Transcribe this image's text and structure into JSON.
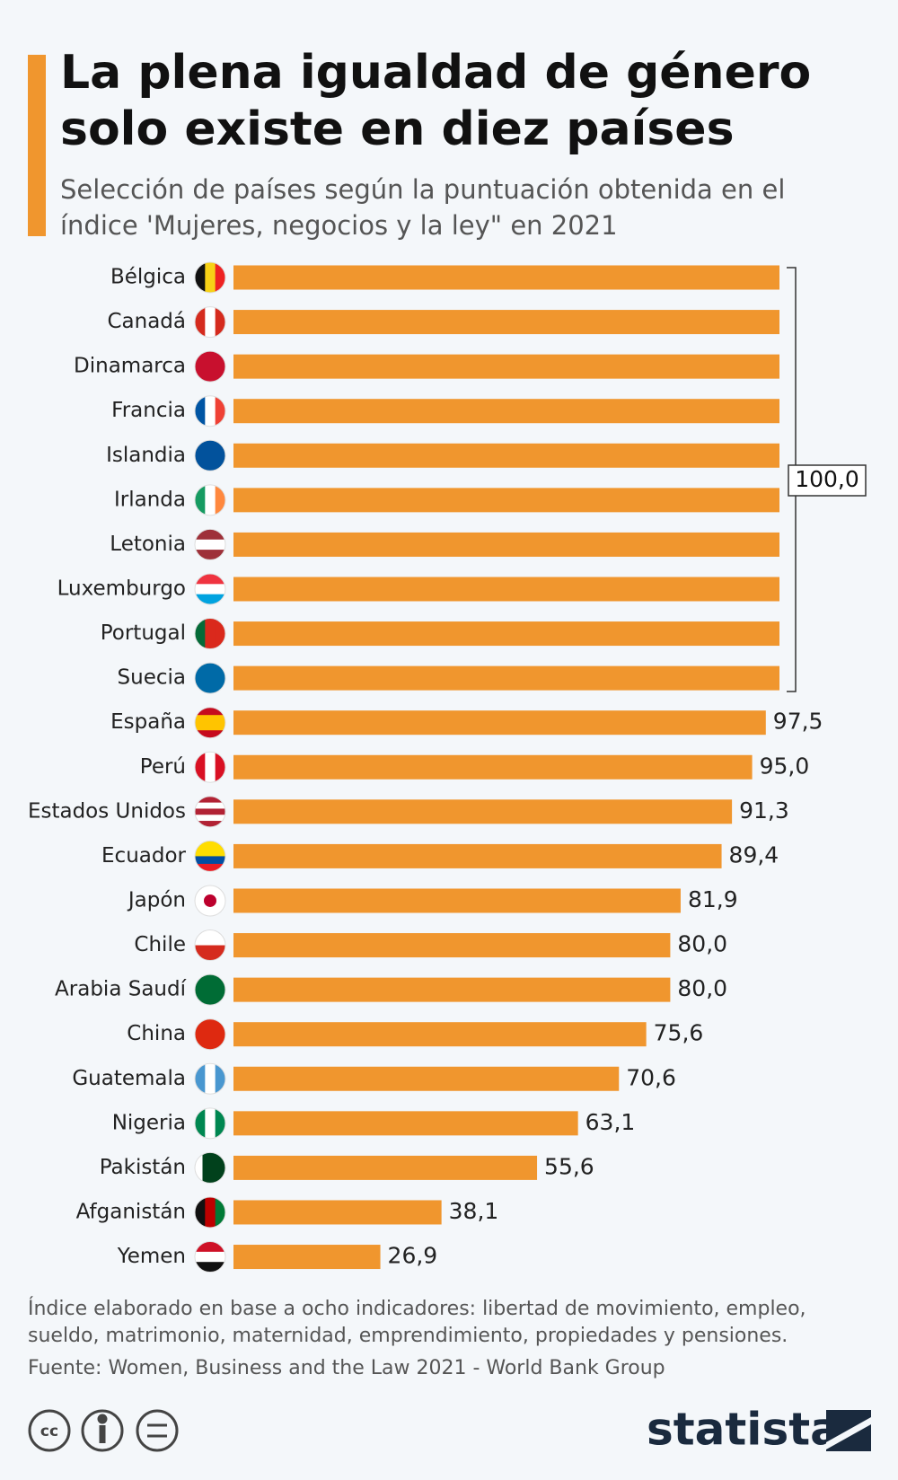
{
  "chart_data": {
    "type": "bar",
    "orientation": "horizontal",
    "title": [
      "La plena igualdad de género",
      "solo existe en diez países"
    ],
    "subtitle": [
      "Selección de países según la puntuación obtenida en el",
      "índice 'Mujeres, negocios y la ley\" en 2021"
    ],
    "categories": [
      "Bélgica",
      "Canadá",
      "Dinamarca",
      "Francia",
      "Islandia",
      "Irlanda",
      "Letonia",
      "Luxemburgo",
      "Portugal",
      "Suecia",
      "España",
      "Perú",
      "Estados Unidos",
      "Ecuador",
      "Japón",
      "Chile",
      "Arabia Saudí",
      "China",
      "Guatemala",
      "Nigeria",
      "Pakistán",
      "Afganistán",
      "Yemen"
    ],
    "values": [
      100,
      100,
      100,
      100,
      100,
      100,
      100,
      100,
      100,
      100,
      97.5,
      95.0,
      91.3,
      89.4,
      81.9,
      80.0,
      80.0,
      75.6,
      70.6,
      63.1,
      55.6,
      38.1,
      26.9
    ],
    "value_labels": [
      null,
      null,
      null,
      null,
      null,
      null,
      null,
      null,
      null,
      null,
      "97,5",
      "95,0",
      "91,3",
      "89,4",
      "81,9",
      "80,0",
      "80,0",
      "75,6",
      "70,6",
      "63,1",
      "55,6",
      "38,1",
      "26,9"
    ],
    "annotation": "100,0",
    "xlim": [
      0,
      100
    ],
    "color": "#f0962e",
    "note": [
      "Índice elaborado en base a ocho indicadores: libertad de movimiento, empleo,",
      "sueldo, matrimonio, maternidad, emprendimiento, propiedades y pensiones."
    ],
    "source": "Fuente:  Women, Business and the Law 2021 - World Bank Group",
    "brand": "statista"
  }
}
